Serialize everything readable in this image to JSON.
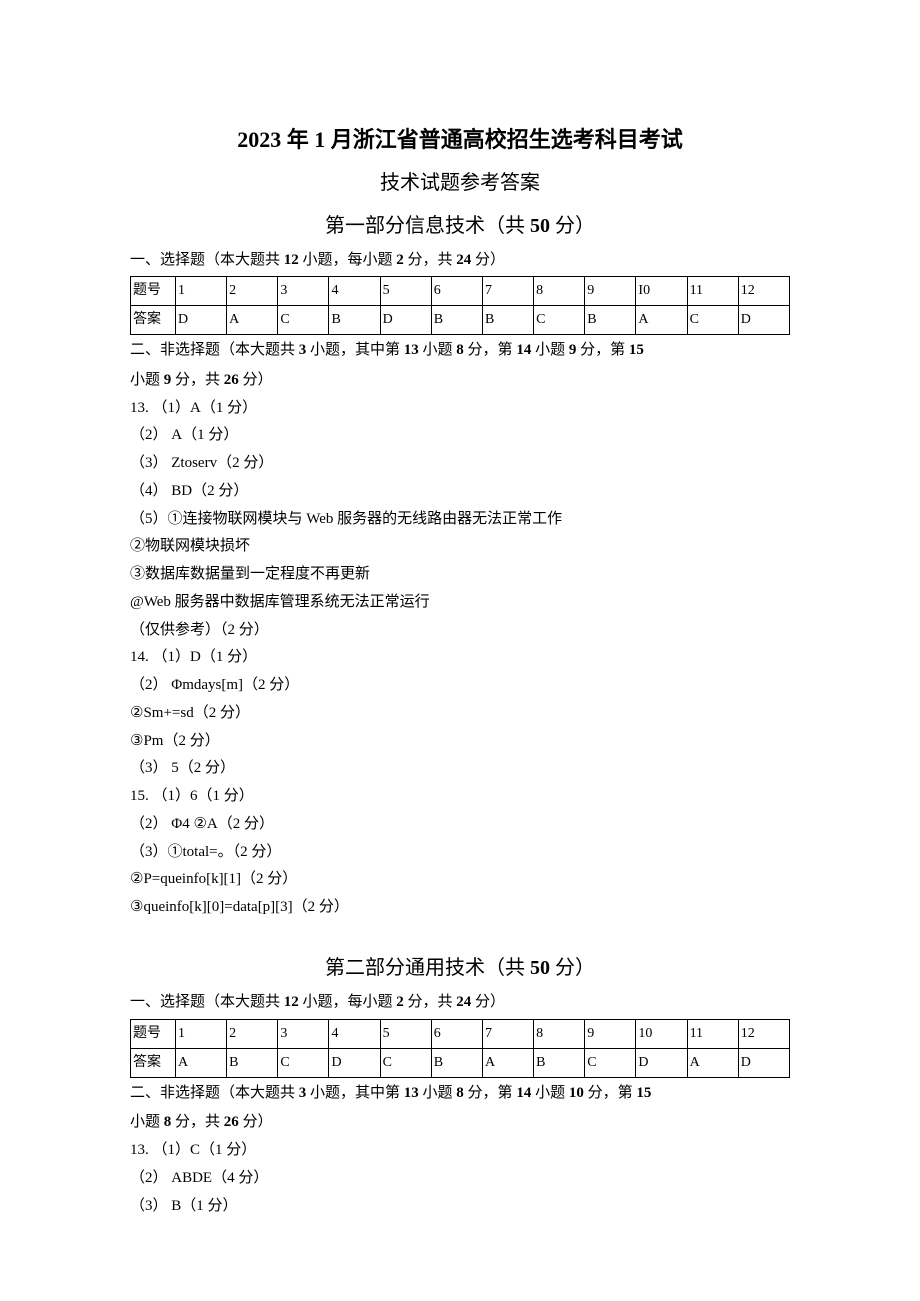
{
  "header": {
    "title_main": "2023 年 1 月浙江省普通高校招生选考科目考试",
    "title_sub": "技术试题参考答案"
  },
  "part1": {
    "section_title_prefix": "第一部分信息技术（共 ",
    "section_title_points": "50",
    "section_title_suffix": " 分）",
    "mc": {
      "heading_prefix": "一、选择题（本大题共 ",
      "count": "12",
      "heading_mid": " 小题，每小题 ",
      "per": "2",
      "heading_mid2": " 分，共 ",
      "total": "24",
      "heading_suffix": " 分）",
      "label_num": "题号",
      "label_ans": "答案",
      "nums": [
        "1",
        "2",
        "3",
        "4",
        "5",
        "6",
        "7",
        "8",
        "9",
        "I0",
        "11",
        "12"
      ],
      "answers": [
        "D",
        "A",
        "C",
        "B",
        "D",
        "B",
        "B",
        "C",
        "B",
        "A",
        "C",
        "D"
      ]
    },
    "frq": {
      "heading_prefix": "二、非选择题（本大题共 ",
      "count": "3",
      "heading_mid1": " 小题，其中第 ",
      "q13": "13",
      "heading_q13pts": " 小题 ",
      "q13_pts": "8",
      "heading_mid2": " 分，第 ",
      "q14": "14",
      "heading_q14pts": " 小题 ",
      "q14_pts": "9",
      "heading_mid3": " 分，第 ",
      "q15": "15",
      "line2_prefix": "小题 ",
      "q15_pts": "9",
      "line2_mid": " 分，共 ",
      "total": "26",
      "line2_suffix": " 分）",
      "lines": [
        "13.  （1）A（1 分）",
        "（2）   A（1 分）",
        "（3）   Ztoserv（2 分）",
        "（4）   BD（2 分）",
        "（5）①连接物联网模块与 Web 服务器的无线路由器无法正常工作",
        "②物联网模块损坏",
        "③数据库数据量到一定程度不再更新",
        "@Web 服务器中数据库管理系统无法正常运行",
        "（仅供参考）（2 分）",
        "14.  （1）D（1 分）",
        "（2）   Φmdays[m]（2 分）",
        "②Sm+=sd（2 分）",
        "③Pm（2 分）",
        "（3）   5（2 分）",
        "15.  （1）6（1 分）",
        "（2）               Φ4  ②A（2 分）",
        "（3）①total=。（2 分）",
        "②P=queinfo[k][1]（2 分）",
        "③queinfo[k][0]=data[p][3]（2 分）"
      ]
    }
  },
  "part2": {
    "section_title_prefix": "第二部分通用技术（共 ",
    "section_title_points": "50",
    "section_title_suffix": " 分）",
    "mc": {
      "heading_prefix": "一、选择题（本大题共 ",
      "count": "12",
      "heading_mid": " 小题，每小题 ",
      "per": "2",
      "heading_mid2": " 分，共 ",
      "total": "24",
      "heading_suffix": " 分）",
      "label_num": "题号",
      "label_ans": "答案",
      "nums": [
        "1",
        "2",
        "3",
        "4",
        "5",
        "6",
        "7",
        "8",
        "9",
        "10",
        "11",
        "12"
      ],
      "answers": [
        "A",
        "B",
        "C",
        "D",
        "C",
        "B",
        "A",
        "B",
        "C",
        "D",
        "A",
        "D"
      ]
    },
    "frq": {
      "heading_prefix": "二、非选择题（本大题共 ",
      "count": "3",
      "heading_mid1": " 小题，其中第 ",
      "q13": "13",
      "heading_q13pts": " 小题 ",
      "q13_pts": "8",
      "heading_mid2": " 分，第 ",
      "q14": "14",
      "heading_q14pts": " 小题 ",
      "q14_pts": "10",
      "heading_mid3": " 分，第 ",
      "q15": "15",
      "line2_prefix": "小题 ",
      "q15_pts": "8",
      "line2_mid": " 分，共 ",
      "total": "26",
      "line2_suffix": " 分）",
      "lines": [
        "13.  （1）C（1 分）",
        "（2）   ABDE（4 分）",
        "（3）   B（1 分）"
      ]
    }
  }
}
